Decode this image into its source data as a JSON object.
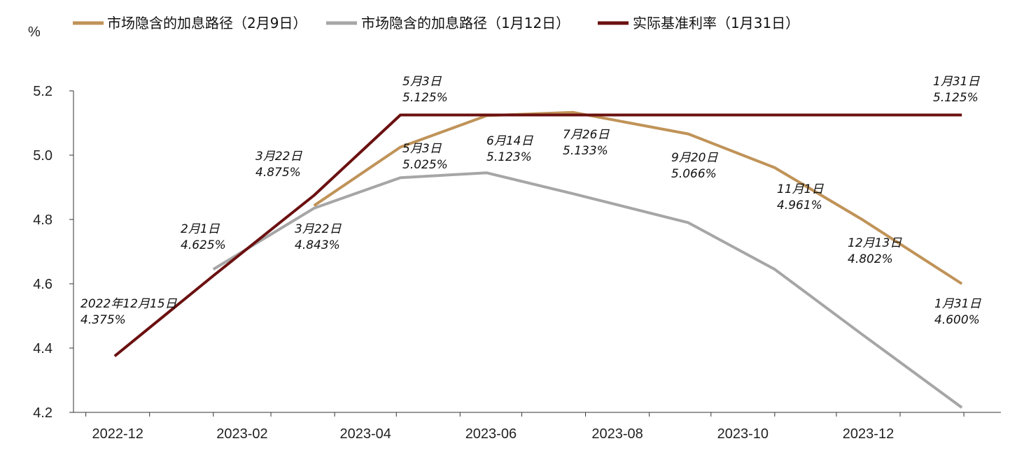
{
  "chart_data": {
    "type": "line",
    "unit_label": "%",
    "ylim": [
      4.2,
      5.2
    ],
    "y_ticks": [
      "5.2",
      "5.0",
      "4.8",
      "4.6",
      "4.4",
      "4.2"
    ],
    "x_tick_labels": [
      "2022-12",
      "2023-02",
      "2023-04",
      "2023-06",
      "2023-08",
      "2023-10",
      "2023-12"
    ],
    "grid": false,
    "legend_position": "top",
    "series": [
      {
        "name": "市场隐含的加息路径（2月9日）",
        "color": "#c09358",
        "points": [
          {
            "x": "2023-03-22",
            "y": 4.843
          },
          {
            "x": "2023-05-03",
            "y": 5.025
          },
          {
            "x": "2023-06-14",
            "y": 5.123
          },
          {
            "x": "2023-07-26",
            "y": 5.133
          },
          {
            "x": "2023-09-20",
            "y": 5.066
          },
          {
            "x": "2023-11-01",
            "y": 4.961
          },
          {
            "x": "2023-12-13",
            "y": 4.802
          },
          {
            "x": "2024-01-31",
            "y": 4.6
          }
        ]
      },
      {
        "name": "市场隐含的加息路径（1月12日）",
        "color": "#a6a6a6",
        "points": [
          {
            "x": "2023-02-01",
            "y": 4.645
          },
          {
            "x": "2023-03-22",
            "y": 4.835
          },
          {
            "x": "2023-05-03",
            "y": 4.93
          },
          {
            "x": "2023-06-14",
            "y": 4.945
          },
          {
            "x": "2023-07-26",
            "y": 4.88
          },
          {
            "x": "2023-09-20",
            "y": 4.79
          },
          {
            "x": "2023-11-01",
            "y": 4.645
          },
          {
            "x": "2023-12-13",
            "y": 4.445
          },
          {
            "x": "2024-01-31",
            "y": 4.215
          }
        ]
      },
      {
        "name": "实际基准利率（1月31日）",
        "color": "#6b1010",
        "points": [
          {
            "x": "2022-12-15",
            "y": 4.375
          },
          {
            "x": "2023-02-01",
            "y": 4.625
          },
          {
            "x": "2023-03-22",
            "y": 4.875
          },
          {
            "x": "2023-05-03",
            "y": 5.125
          },
          {
            "x": "2024-01-31",
            "y": 5.125
          }
        ]
      }
    ],
    "annotations": [
      {
        "id": "a1",
        "line1": "2022年12月15日",
        "line2": "4.375%"
      },
      {
        "id": "a2",
        "line1": "2月1日",
        "line2": "4.625%"
      },
      {
        "id": "a3",
        "line1": "3月22日",
        "line2": "4.875%"
      },
      {
        "id": "a4",
        "line1": "3月22日",
        "line2": "4.843%"
      },
      {
        "id": "a5",
        "line1": "5月3日",
        "line2": "5.125%"
      },
      {
        "id": "a6",
        "line1": "5月3日",
        "line2": "5.025%"
      },
      {
        "id": "a7",
        "line1": "6月14日",
        "line2": "5.123%"
      },
      {
        "id": "a8",
        "line1": "7月26日",
        "line2": "5.133%"
      },
      {
        "id": "a9",
        "line1": "9月20日",
        "line2": "5.066%"
      },
      {
        "id": "a10",
        "line1": "11月1日",
        "line2": "4.961%"
      },
      {
        "id": "a11",
        "line1": "12月13日",
        "line2": "4.802%"
      },
      {
        "id": "a12",
        "line1": "1月31日",
        "line2": "4.600%"
      },
      {
        "id": "a13",
        "line1": "1月31日",
        "line2": "5.125%"
      }
    ]
  }
}
